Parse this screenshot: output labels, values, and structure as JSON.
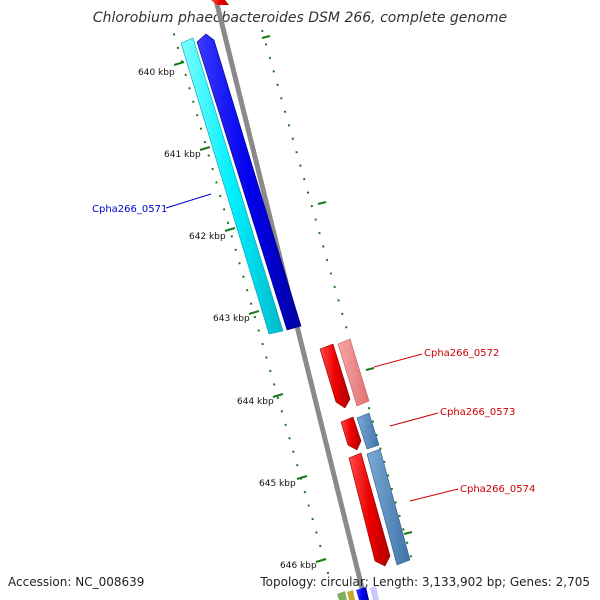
{
  "title": "Chlorobium phaeobacteroides DSM 266, complete genome",
  "accession": "Accession: NC_008639",
  "info": "Topology: circular; Length: 3,133,902 bp; Genes: 2,705",
  "colors": {
    "backbone": "#808080",
    "tick": "#1a7a1a",
    "forward_label": "#0000cc",
    "reverse_label": "#cc0000"
  },
  "ticks": [
    "640 kbp",
    "641 kbp",
    "642 kbp",
    "643 kbp",
    "644 kbp",
    "645 kbp",
    "646 kbp"
  ],
  "gene_labels": [
    {
      "text": "Cpha266_0571",
      "color": "#0000cc"
    },
    {
      "text": "Cpha266_0572",
      "color": "#cc0000"
    },
    {
      "text": "Cpha266_0573",
      "color": "#cc0000"
    },
    {
      "text": "Cpha266_0574",
      "color": "#cc0000"
    }
  ]
}
